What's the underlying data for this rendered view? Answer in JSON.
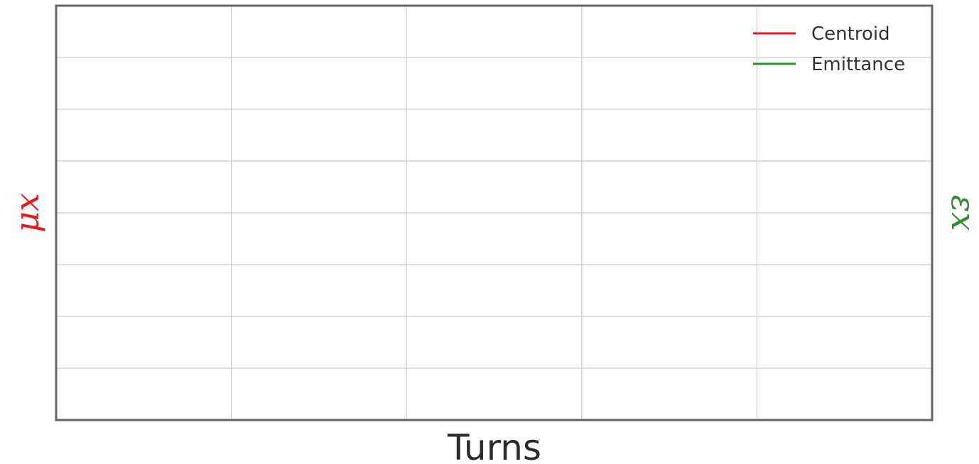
{
  "chart_data": {
    "type": "line",
    "xlabel": "Turns",
    "ylabel_left": "μx",
    "ylabel_right": "εx",
    "grid": true,
    "legend_position": "top-right",
    "series": [
      {
        "name": "Centroid",
        "color": "#e41a1c",
        "x": [],
        "y": []
      },
      {
        "name": "Emittance",
        "color": "#2e8b2e",
        "x": [],
        "y": []
      }
    ],
    "xlim": [
      0,
      5
    ],
    "ylim": [
      0,
      8
    ]
  },
  "colors": {
    "left_axis_label": "#e41a1c",
    "right_axis_label": "#2e8b2e",
    "frame": "#666666",
    "grid": "#cccccc"
  }
}
